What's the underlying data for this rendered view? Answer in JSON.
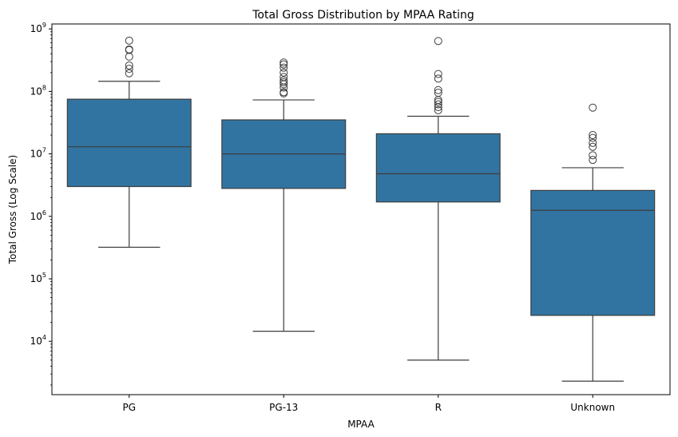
{
  "chart_data": {
    "type": "box",
    "title": "Total Gross Distribution by MPAA Rating",
    "xlabel": "MPAA",
    "ylabel": "Total Gross (Log Scale)",
    "yscale": "log",
    "ylim": [
      1400,
      1200000000
    ],
    "yticks": [
      {
        "value": 10000,
        "base": "10",
        "exp": "4"
      },
      {
        "value": 100000,
        "base": "10",
        "exp": "5"
      },
      {
        "value": 1000000,
        "base": "10",
        "exp": "6"
      },
      {
        "value": 10000000,
        "base": "10",
        "exp": "7"
      },
      {
        "value": 100000000,
        "base": "10",
        "exp": "8"
      },
      {
        "value": 1000000000,
        "base": "10",
        "exp": "9"
      }
    ],
    "categories": [
      "PG",
      "PG-13",
      "R",
      "Unknown"
    ],
    "color": "#3274a1",
    "line_color": "#3d3d3d",
    "grid": false,
    "boxes": [
      {
        "category": "PG",
        "whisker_low": 320000,
        "q1": 3000000,
        "median": 13000000,
        "q3": 75000000,
        "whisker_high": 145000000,
        "outliers": [
          195000000,
          230000000,
          260000000,
          360000000,
          460000000,
          470000000,
          650000000
        ]
      },
      {
        "category": "PG-13",
        "whisker_low": 14500,
        "q1": 2800000,
        "median": 10000000,
        "q3": 35000000,
        "whisker_high": 73000000,
        "outliers": [
          93000000,
          97000000,
          115000000,
          130000000,
          140000000,
          150000000,
          170000000,
          200000000,
          240000000,
          270000000,
          290000000
        ]
      },
      {
        "category": "R",
        "whisker_low": 5000,
        "q1": 1700000,
        "median": 4800000,
        "q3": 21000000,
        "whisker_high": 40000000,
        "outliers": [
          50000000,
          56000000,
          62000000,
          68000000,
          73000000,
          95000000,
          105000000,
          160000000,
          190000000,
          640000000
        ]
      },
      {
        "category": "Unknown",
        "whisker_low": 2300,
        "q1": 26000,
        "median": 1250000,
        "q3": 2600000,
        "whisker_high": 6000000,
        "outliers": [
          8000000,
          9500000,
          13000000,
          15000000,
          18000000,
          20000000,
          55000000
        ]
      }
    ]
  }
}
